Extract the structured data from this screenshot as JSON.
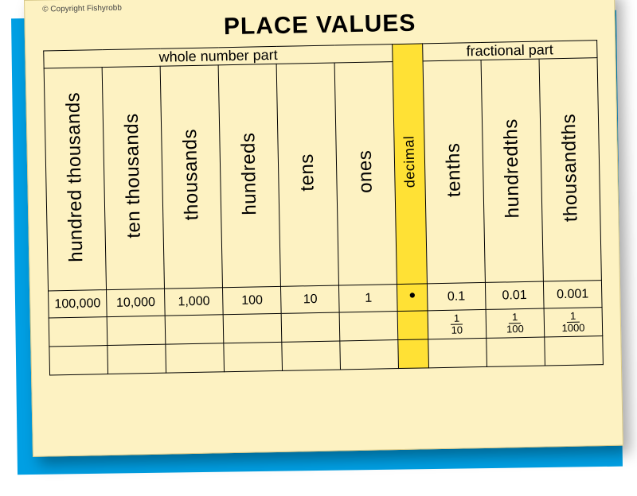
{
  "copyright": "© Copyright Fishyrobb",
  "title": "PLACE VALUES",
  "sections": {
    "whole": "whole number part",
    "fractional": "fractional part"
  },
  "columns": {
    "whole": [
      {
        "label": "hundred thousands",
        "value": "100,000"
      },
      {
        "label": "ten thousands",
        "value": "10,000"
      },
      {
        "label": "thousands",
        "value": "1,000"
      },
      {
        "label": "hundreds",
        "value": "100"
      },
      {
        "label": "tens",
        "value": "10"
      },
      {
        "label": "ones",
        "value": "1"
      }
    ],
    "decimal": {
      "label": "decimal",
      "value": "•"
    },
    "fractional": [
      {
        "label": "tenths",
        "value": "0.1",
        "frac_num": "1",
        "frac_den": "10"
      },
      {
        "label": "hundredths",
        "value": "0.01",
        "frac_num": "1",
        "frac_den": "100"
      },
      {
        "label": "thousandths",
        "value": "0.001",
        "frac_num": "1",
        "frac_den": "1000"
      }
    ]
  },
  "colors": {
    "paper": "#fdf2c2",
    "backdrop": "#009fe3",
    "highlight": "#ffe135",
    "border": "#000000"
  }
}
